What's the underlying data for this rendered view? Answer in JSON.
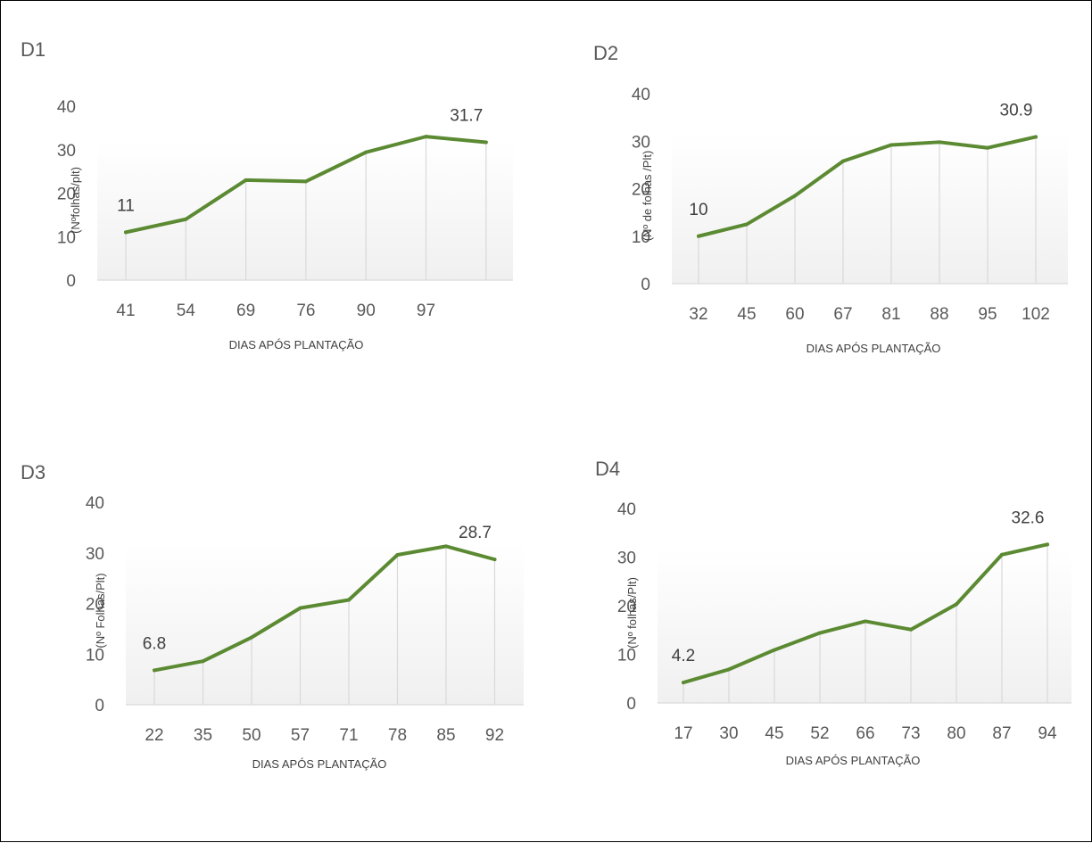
{
  "chart_data": [
    {
      "type": "line",
      "title": "D1",
      "xlabel": "DIAS  APÓS PLANTAÇÃO",
      "ylabel": "(Nºfolhas/plt)",
      "ylim": [
        0,
        40
      ],
      "yticks": [
        0,
        10,
        20,
        30,
        40
      ],
      "categories": [
        "41",
        "54",
        "69",
        "76",
        "90",
        "97",
        ""
      ],
      "values": [
        11,
        14,
        23,
        22.7,
        29.4,
        33,
        31.7
      ],
      "annotations": [
        "11",
        "31.7"
      ],
      "line_color": "#5b8a32",
      "grid": false
    },
    {
      "type": "line",
      "title": "D2",
      "xlabel": "DIAS  APÓS PLANTAÇÃO",
      "ylabel": "(Nº de folhas /Plt)",
      "ylim": [
        0,
        40
      ],
      "yticks": [
        0,
        10,
        20,
        30,
        40
      ],
      "categories": [
        "32",
        "45",
        "60",
        "67",
        "81",
        "88",
        "95",
        "102"
      ],
      "values": [
        10,
        12.5,
        18.5,
        25.8,
        29.2,
        29.8,
        28.6,
        30.9
      ],
      "annotations": [
        "10",
        "30.9"
      ],
      "line_color": "#5b8a32",
      "grid": false
    },
    {
      "type": "line",
      "title": "D3",
      "xlabel": "DIAS  APÓS PLANTAÇÃO",
      "ylabel": "(Nº Folhas/Plt)",
      "ylim": [
        0,
        40
      ],
      "yticks": [
        0,
        10,
        20,
        30,
        40
      ],
      "categories": [
        "22",
        "35",
        "50",
        "57",
        "71",
        "78",
        "85",
        "92"
      ],
      "values": [
        6.8,
        8.6,
        13.3,
        19.1,
        20.7,
        29.6,
        31.3,
        28.7
      ],
      "annotations": [
        "6.8",
        "28.7"
      ],
      "line_color": "#5b8a32",
      "grid": false
    },
    {
      "type": "line",
      "title": "D4",
      "xlabel": "DIAS  APÓS PLANTAÇÃO",
      "ylabel": "(Nº folhas/Plt)",
      "ylim": [
        0,
        40
      ],
      "yticks": [
        0,
        10,
        20,
        30,
        40
      ],
      "categories": [
        "17",
        "30",
        "45",
        "52",
        "66",
        "73",
        "80",
        "87",
        "94"
      ],
      "values": [
        4.2,
        6.9,
        10.9,
        14.4,
        16.8,
        15.1,
        20.3,
        30.5,
        32.6
      ],
      "annotations": [
        "4.2",
        "32.6"
      ],
      "line_color": "#5b8a32",
      "grid": false
    }
  ]
}
